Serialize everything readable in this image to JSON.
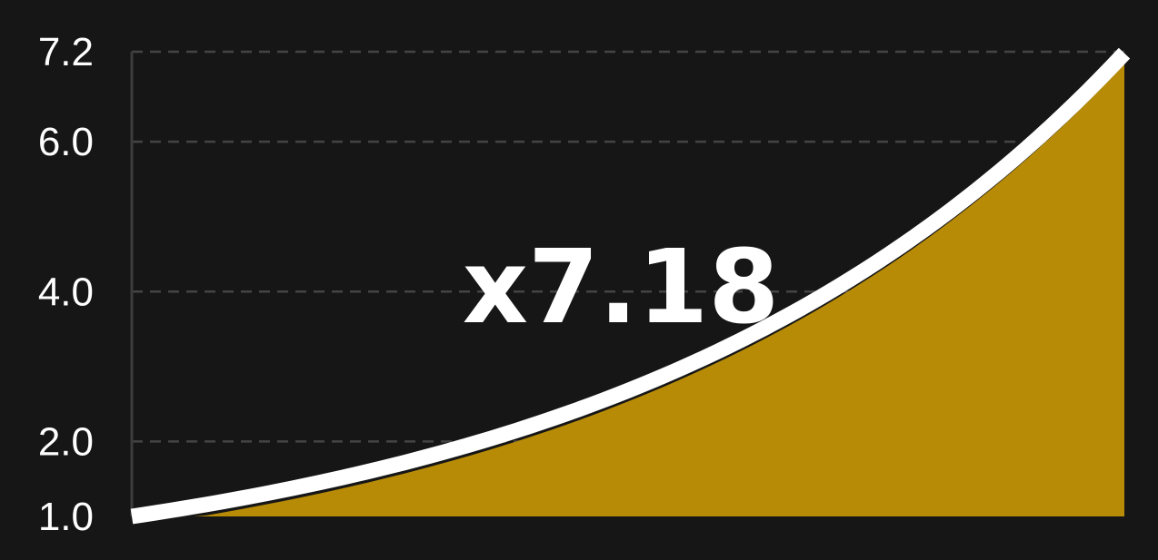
{
  "chart_data": {
    "type": "area",
    "title": "",
    "xlabel": "",
    "ylabel": "",
    "ylim": [
      1.0,
      7.2
    ],
    "y_ticks": [
      1.0,
      2.0,
      4.0,
      6.0,
      7.2
    ],
    "y_tick_labels": [
      "1.0",
      "2.0",
      "4.0",
      "6.0",
      "7.2"
    ],
    "grid": "horizontal dashed",
    "annotation": "x7.18",
    "series": [
      {
        "x": [
          0,
          0.1,
          0.2,
          0.3,
          0.4,
          0.5,
          0.6,
          0.7,
          0.8,
          0.9,
          1.0
        ],
        "y": [
          1.0,
          1.22,
          1.48,
          1.81,
          2.2,
          2.68,
          3.27,
          3.98,
          4.85,
          5.9,
          7.18
        ]
      }
    ]
  },
  "colors": {
    "background": "#161616",
    "fill": "#b78b06",
    "line": "#ffffff",
    "grid": "#444444",
    "axis": "#3c3c3c",
    "text": "#ffffff"
  }
}
